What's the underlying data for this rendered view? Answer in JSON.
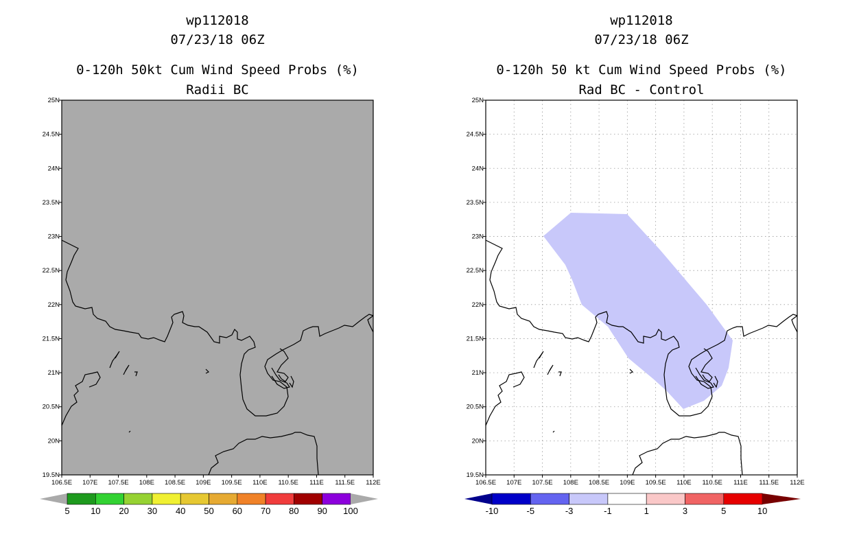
{
  "left_panel": {
    "title_line1": "wp112018",
    "title_line2": "07/23/18 06Z",
    "title_line3": "0-120h 50kt Cum Wind Speed Probs (%)",
    "title_line4": "Radii BC",
    "background_color": "#aaaaaa",
    "colorbar": {
      "colors": [
        "#1e9a1e",
        "#32d232",
        "#96d232",
        "#f0f032",
        "#e6c832",
        "#e6aa32",
        "#f08228",
        "#f03c3c",
        "#a00000",
        "#8c00dc"
      ],
      "labels": [
        "5",
        "10",
        "20",
        "30",
        "40",
        "50",
        "60",
        "70",
        "80",
        "90",
        "100"
      ]
    }
  },
  "right_panel": {
    "title_line1": "wp112018",
    "title_line2": "07/23/18 06Z",
    "title_line3": "0-120h 50 kt Cum Wind Speed Probs (%)",
    "title_line4": "Rad BC - Control",
    "shaded_color": "#c8c8fa",
    "shaded_range": "-3 to -1",
    "colorbar": {
      "colors": [
        "#0000c8",
        "#6464f0",
        "#c8c8fa",
        "#ffffff",
        "#fac8c8",
        "#f06464",
        "#e60000"
      ],
      "end_left": "#00008c",
      "end_right": "#780000",
      "labels": [
        "-10",
        "-5",
        "-3",
        "-1",
        "1",
        "3",
        "5",
        "10"
      ]
    }
  },
  "axes": {
    "lon_labels": [
      "106.5E",
      "107E",
      "107.5E",
      "108E",
      "108.5E",
      "109E",
      "109.5E",
      "110E",
      "110.5E",
      "111E",
      "111.5E",
      "112E"
    ],
    "lat_labels": [
      "25N",
      "24.5N",
      "24N",
      "23.5N",
      "23N",
      "22.5N",
      "22N",
      "21.5N",
      "21N",
      "20.5N",
      "20N",
      "19.5N"
    ]
  }
}
